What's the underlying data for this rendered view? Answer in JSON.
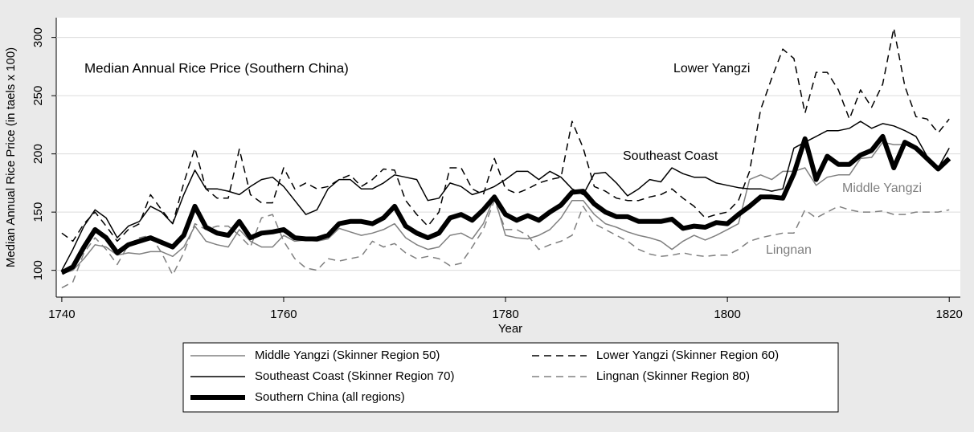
{
  "chart_data": {
    "type": "line",
    "x_label": "Year",
    "y_label": "Median Annual Rice Price (in taels x 100)",
    "annotations": [
      {
        "text": "Median Annual Rice Price (Southern China)",
        "color": "#000000"
      },
      {
        "text": "Lower Yangzi",
        "color": "#000000"
      },
      {
        "text": "Southeast Coast",
        "color": "#000000"
      },
      {
        "text": "Middle Yangzi",
        "color": "#808080"
      },
      {
        "text": "Lingnan",
        "color": "#808080"
      }
    ],
    "x": [
      1740,
      1741,
      1742,
      1743,
      1744,
      1745,
      1746,
      1747,
      1748,
      1749,
      1750,
      1751,
      1752,
      1753,
      1754,
      1755,
      1756,
      1757,
      1758,
      1759,
      1760,
      1761,
      1762,
      1763,
      1764,
      1765,
      1766,
      1767,
      1768,
      1769,
      1770,
      1771,
      1772,
      1773,
      1774,
      1775,
      1776,
      1777,
      1778,
      1779,
      1780,
      1781,
      1782,
      1783,
      1784,
      1785,
      1786,
      1787,
      1788,
      1789,
      1790,
      1791,
      1792,
      1793,
      1794,
      1795,
      1796,
      1797,
      1798,
      1799,
      1800,
      1801,
      1802,
      1803,
      1804,
      1805,
      1806,
      1807,
      1808,
      1809,
      1810,
      1811,
      1812,
      1813,
      1814,
      1815,
      1816,
      1817,
      1818,
      1819,
      1820
    ],
    "series": [
      {
        "name": "Middle Yangzi (Skinner Region 50)",
        "color": "#808080",
        "dash": false,
        "width": 1.5,
        "values": [
          97,
          100,
          110,
          122,
          120,
          113,
          115,
          114,
          116,
          116,
          112,
          120,
          138,
          125,
          122,
          120,
          135,
          125,
          120,
          120,
          130,
          125,
          126,
          125,
          127,
          136,
          133,
          130,
          132,
          135,
          140,
          128,
          122,
          118,
          120,
          130,
          132,
          127,
          140,
          163,
          130,
          128,
          127,
          130,
          135,
          145,
          160,
          160,
          148,
          140,
          137,
          133,
          130,
          128,
          125,
          118,
          125,
          130,
          126,
          130,
          135,
          140,
          178,
          182,
          178,
          185,
          185,
          188,
          173,
          180,
          182,
          182,
          196,
          197,
          210,
          208,
          208,
          205,
          198,
          188,
          195
        ]
      },
      {
        "name": "Lower Yangzi (Skinner Region 60)",
        "color": "#000000",
        "dash": true,
        "width": 1.5,
        "values": [
          132,
          125,
          140,
          150,
          138,
          125,
          135,
          140,
          165,
          152,
          140,
          175,
          205,
          170,
          162,
          162,
          204,
          165,
          158,
          158,
          188,
          170,
          175,
          170,
          172,
          178,
          182,
          172,
          178,
          187,
          186,
          160,
          148,
          138,
          150,
          188,
          188,
          170,
          165,
          196,
          170,
          166,
          170,
          175,
          178,
          180,
          228,
          205,
          172,
          168,
          162,
          160,
          160,
          163,
          165,
          170,
          162,
          155,
          145,
          148,
          150,
          160,
          185,
          238,
          265,
          290,
          282,
          235,
          270,
          270,
          255,
          230,
          255,
          240,
          260,
          308,
          258,
          232,
          230,
          218,
          230
        ]
      },
      {
        "name": "Southeast Coast (Skinner Region 70)",
        "color": "#000000",
        "dash": false,
        "width": 1.5,
        "values": [
          100,
          118,
          138,
          152,
          145,
          128,
          138,
          142,
          155,
          150,
          140,
          165,
          186,
          170,
          170,
          168,
          165,
          172,
          178,
          180,
          172,
          160,
          148,
          152,
          170,
          178,
          178,
          170,
          170,
          175,
          182,
          180,
          178,
          160,
          162,
          175,
          172,
          165,
          168,
          172,
          178,
          185,
          185,
          178,
          185,
          180,
          170,
          165,
          183,
          184,
          175,
          164,
          170,
          178,
          176,
          188,
          183,
          180,
          180,
          175,
          173,
          171,
          170,
          170,
          168,
          170,
          205,
          210,
          215,
          220,
          220,
          222,
          228,
          222,
          226,
          224,
          220,
          215,
          198,
          188,
          205
        ]
      },
      {
        "name": "Lingnan (Skinner Region 80)",
        "color": "#808080",
        "dash": true,
        "width": 1.5,
        "values": [
          85,
          90,
          115,
          128,
          118,
          105,
          122,
          128,
          130,
          115,
          96,
          115,
          140,
          135,
          138,
          138,
          130,
          120,
          145,
          148,
          125,
          110,
          102,
          100,
          110,
          108,
          110,
          112,
          125,
          120,
          123,
          115,
          110,
          112,
          110,
          104,
          106,
          120,
          135,
          160,
          135,
          135,
          130,
          118,
          122,
          125,
          130,
          155,
          140,
          135,
          130,
          125,
          118,
          114,
          112,
          113,
          115,
          113,
          112,
          113,
          113,
          118,
          125,
          128,
          130,
          132,
          132,
          152,
          145,
          150,
          155,
          152,
          150,
          150,
          151,
          148,
          148,
          150,
          150,
          150,
          152
        ]
      },
      {
        "name": "Southern China (all regions)",
        "color": "#000000",
        "dash": false,
        "width": 6,
        "values": [
          98,
          103,
          120,
          135,
          128,
          115,
          122,
          125,
          128,
          124,
          120,
          130,
          155,
          137,
          132,
          130,
          142,
          128,
          132,
          133,
          135,
          128,
          127,
          127,
          130,
          140,
          142,
          142,
          140,
          145,
          155,
          138,
          132,
          128,
          132,
          145,
          148,
          143,
          152,
          163,
          148,
          143,
          147,
          143,
          150,
          156,
          167,
          168,
          157,
          150,
          146,
          146,
          142,
          142,
          142,
          144,
          136,
          138,
          137,
          141,
          140,
          148,
          155,
          163,
          163,
          162,
          183,
          213,
          178,
          198,
          191,
          191,
          199,
          203,
          215,
          188,
          210,
          205,
          196,
          187,
          196
        ]
      }
    ],
    "xlim": [
      1739.5,
      1821
    ],
    "xticks": [
      1740,
      1760,
      1780,
      1800,
      1820
    ],
    "ylim": [
      77,
      317
    ],
    "yticks": [
      100,
      150,
      200,
      250,
      300
    ],
    "grid": true
  }
}
